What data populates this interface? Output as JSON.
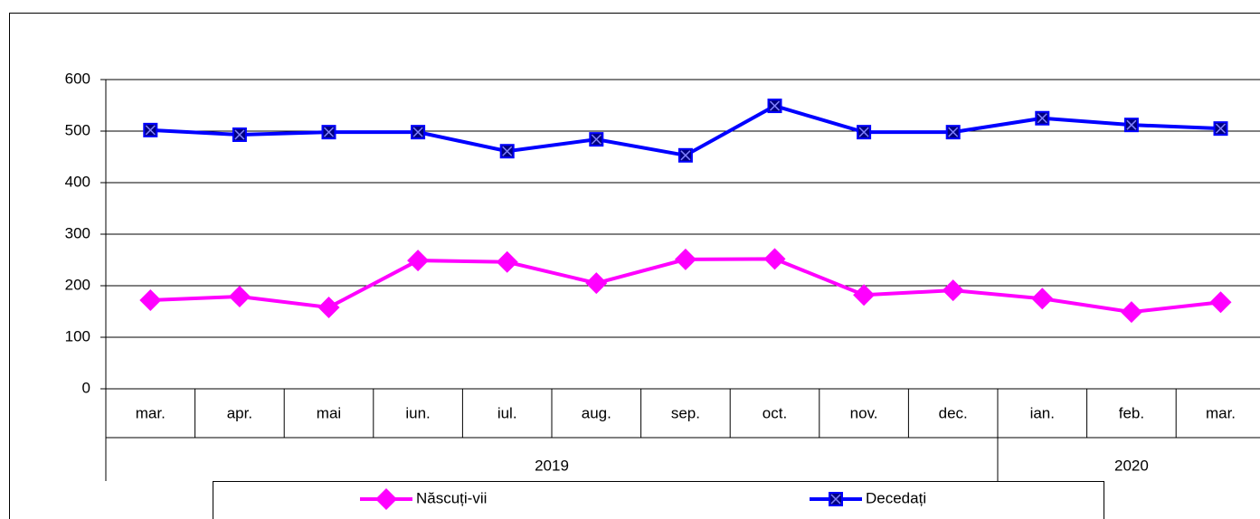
{
  "chart_data": {
    "type": "line",
    "categories": [
      "mar.",
      "apr.",
      "mai",
      "iun.",
      "iul.",
      "aug.",
      "sep.",
      "oct.",
      "nov.",
      "dec.",
      "ian.",
      "feb.",
      "mar."
    ],
    "category_groups": [
      {
        "label": "2019",
        "size": 10
      },
      {
        "label": "2020",
        "size": 3
      }
    ],
    "series": [
      {
        "name": "Născuți-vii",
        "color": "#ff00ff",
        "marker": "diamond",
        "values": [
          172,
          179,
          158,
          249,
          246,
          205,
          251,
          252,
          182,
          191,
          175,
          149,
          168
        ]
      },
      {
        "name": "Decedați",
        "color": "#0000ff",
        "marker": "square-x",
        "values": [
          502,
          493,
          498,
          498,
          461,
          484,
          453,
          549,
          498,
          498,
          525,
          512,
          505
        ]
      }
    ],
    "ylim": [
      0,
      600
    ],
    "yticks": [
      0,
      100,
      200,
      300,
      400,
      500,
      600
    ],
    "grid": true,
    "legend": "bottom"
  }
}
